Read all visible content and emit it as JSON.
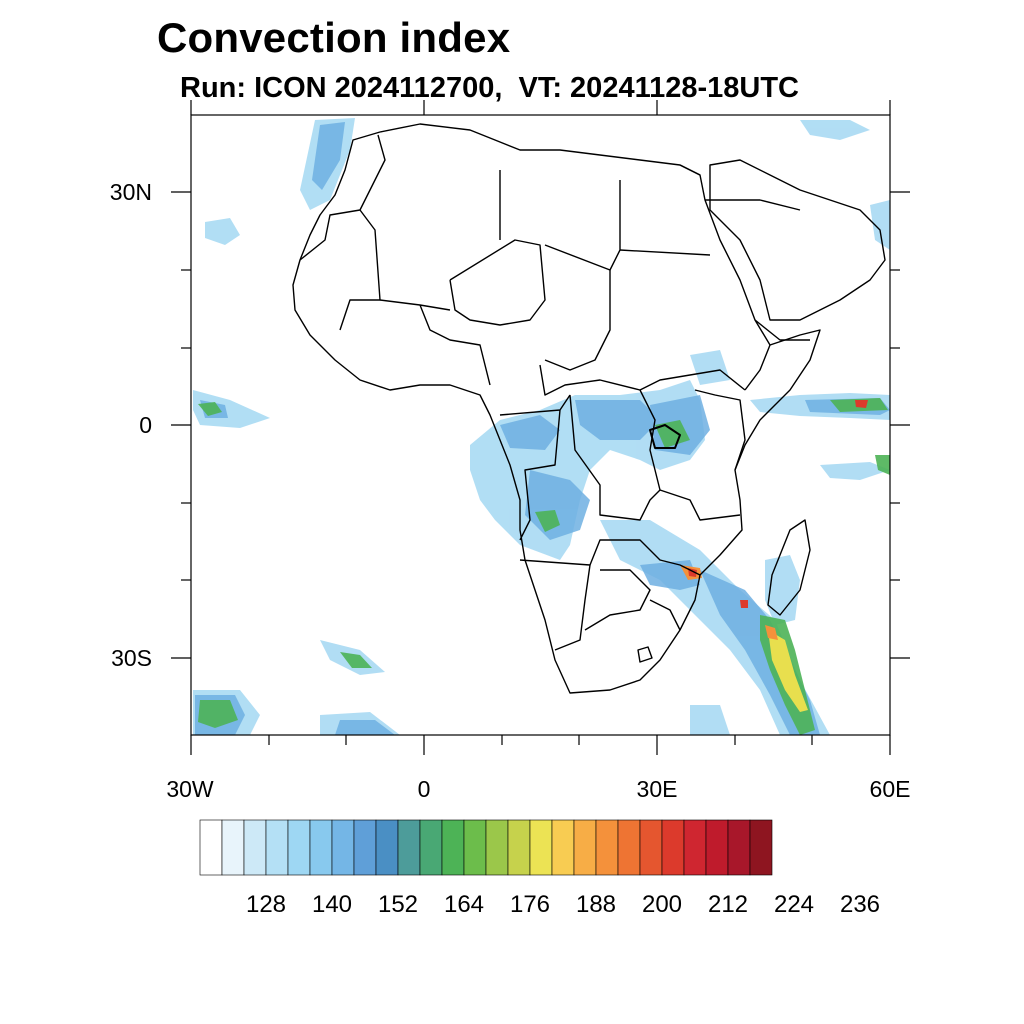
{
  "title": "Convection index",
  "subtitle": "Run: ICON 2024112700,  VT: 20241128-18UTC",
  "map": {
    "lon_range": [
      -30,
      60
    ],
    "lat_range": [
      -40,
      40
    ],
    "x_ticks": [
      "30W",
      "0",
      "30E",
      "60E"
    ],
    "y_ticks": [
      "30N",
      "0",
      "30S"
    ]
  },
  "colorbar": {
    "colors": [
      "#ffffff",
      "#e8f4fb",
      "#cde9f7",
      "#b4e0f5",
      "#9ed7f3",
      "#88c9ee",
      "#74b6e6",
      "#5f9fd8",
      "#4a8fc4",
      "#4d9c9a",
      "#49a874",
      "#4db356",
      "#6cbd4b",
      "#9bc74a",
      "#c6d24c",
      "#ece354",
      "#f8cc52",
      "#f7ad46",
      "#f4913b",
      "#ee7433",
      "#e5562f",
      "#dc3a2c",
      "#cf2630",
      "#bf1b2c",
      "#a8172a",
      "#8e1520"
    ],
    "tick_labels": [
      "128",
      "140",
      "152",
      "164",
      "176",
      "188",
      "200",
      "212",
      "224",
      "236"
    ]
  }
}
